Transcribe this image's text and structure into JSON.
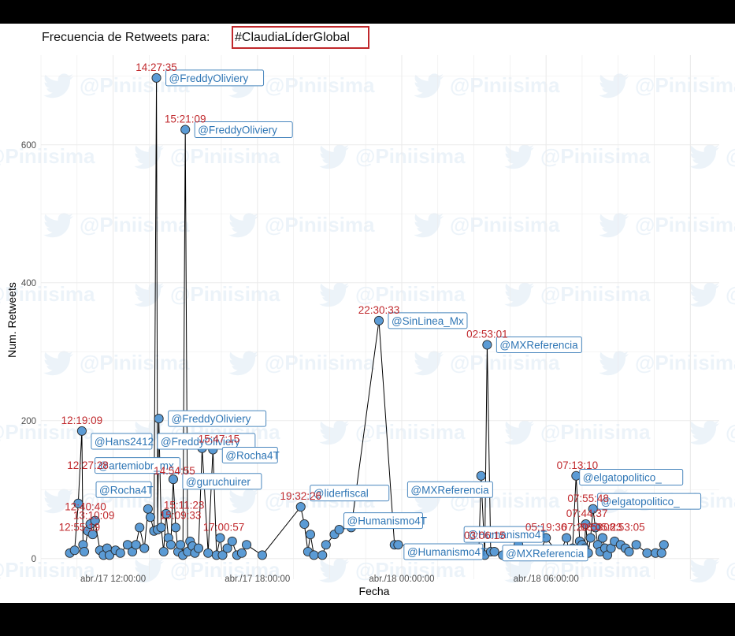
{
  "colors": {
    "point_fill": "#5b9bd5",
    "point_stroke": "#2a2a2a",
    "line": "#000000",
    "time_label": "#c0282c",
    "user_label": "#2f76b5",
    "title_box": "#c0282c",
    "grid": "#ebebeb"
  },
  "watermark": {
    "text": "@Piniisima",
    "icon": "twitter-bird-icon"
  },
  "chart_data": {
    "type": "line",
    "title_prefix": "Frecuencia de Retweets para: ",
    "title_hashtag": "#ClaudiaLíderGlobal",
    "xlabel": "Fecha",
    "ylabel": "Num. Retweets",
    "x_unit": "hours since abr./17 09:00",
    "xlim": [
      0,
      28.2
    ],
    "ylim": [
      -30,
      730
    ],
    "y_ticks": [
      0,
      200,
      400,
      600
    ],
    "x_ticks": [
      {
        "x": 3,
        "label": "abr./17 12:00:00"
      },
      {
        "x": 9,
        "label": "abr./17 18:00:00"
      },
      {
        "x": 15,
        "label": "abr./18 00:00:00"
      },
      {
        "x": 21,
        "label": "abr./18 06:00:00"
      }
    ],
    "points": [
      [
        1.2,
        8
      ],
      [
        1.4,
        12
      ],
      [
        1.55,
        80
      ],
      [
        1.7,
        185
      ],
      [
        1.75,
        20
      ],
      [
        1.8,
        10
      ],
      [
        1.95,
        40
      ],
      [
        2.05,
        50
      ],
      [
        2.15,
        35
      ],
      [
        2.25,
        55
      ],
      [
        2.45,
        12
      ],
      [
        2.6,
        5
      ],
      [
        2.75,
        15
      ],
      [
        2.85,
        5
      ],
      [
        3.1,
        12
      ],
      [
        3.3,
        8
      ],
      [
        3.6,
        20
      ],
      [
        3.8,
        10
      ],
      [
        3.95,
        20
      ],
      [
        4.1,
        45
      ],
      [
        4.3,
        15
      ],
      [
        4.45,
        72
      ],
      [
        4.55,
        60
      ],
      [
        4.7,
        40
      ],
      [
        4.8,
        697
      ],
      [
        4.85,
        42
      ],
      [
        4.9,
        203
      ],
      [
        5.0,
        45
      ],
      [
        5.1,
        10
      ],
      [
        5.2,
        65
      ],
      [
        5.3,
        30
      ],
      [
        5.4,
        20
      ],
      [
        5.5,
        115
      ],
      [
        5.6,
        45
      ],
      [
        5.7,
        10
      ],
      [
        5.8,
        20
      ],
      [
        5.9,
        5
      ],
      [
        6.0,
        622
      ],
      [
        6.1,
        10
      ],
      [
        6.2,
        25
      ],
      [
        6.3,
        18
      ],
      [
        6.4,
        8
      ],
      [
        6.55,
        15
      ],
      [
        6.7,
        160
      ],
      [
        6.95,
        8
      ],
      [
        7.15,
        158
      ],
      [
        7.3,
        5
      ],
      [
        7.45,
        30
      ],
      [
        7.55,
        5
      ],
      [
        7.75,
        15
      ],
      [
        7.95,
        25
      ],
      [
        8.15,
        5
      ],
      [
        8.35,
        8
      ],
      [
        8.55,
        20
      ],
      [
        9.2,
        5
      ],
      [
        10.8,
        75
      ],
      [
        10.95,
        50
      ],
      [
        11.1,
        10
      ],
      [
        11.2,
        35
      ],
      [
        11.35,
        5
      ],
      [
        11.7,
        5
      ],
      [
        11.85,
        20
      ],
      [
        12.2,
        35
      ],
      [
        12.4,
        42
      ],
      [
        12.9,
        45
      ],
      [
        14.05,
        345
      ],
      [
        14.7,
        20
      ],
      [
        14.85,
        20
      ],
      [
        18.0,
        10
      ],
      [
        18.2,
        5
      ],
      [
        18.3,
        120
      ],
      [
        18.45,
        5
      ],
      [
        18.55,
        310
      ],
      [
        18.7,
        10
      ],
      [
        18.85,
        10
      ],
      [
        19.2,
        5
      ],
      [
        19.5,
        5
      ],
      [
        19.85,
        20
      ],
      [
        20.1,
        5
      ],
      [
        20.45,
        8
      ],
      [
        20.75,
        10
      ],
      [
        21.0,
        30
      ],
      [
        21.55,
        5
      ],
      [
        21.85,
        30
      ],
      [
        21.95,
        10
      ],
      [
        22.1,
        15
      ],
      [
        22.25,
        120
      ],
      [
        22.4,
        25
      ],
      [
        22.5,
        20
      ],
      [
        22.6,
        15
      ],
      [
        22.65,
        50
      ],
      [
        22.75,
        8
      ],
      [
        22.85,
        30
      ],
      [
        22.95,
        72
      ],
      [
        23.05,
        45
      ],
      [
        23.15,
        20
      ],
      [
        23.25,
        10
      ],
      [
        23.35,
        30
      ],
      [
        23.45,
        15
      ],
      [
        23.55,
        5
      ],
      [
        23.7,
        15
      ],
      [
        23.85,
        25
      ],
      [
        24.1,
        20
      ],
      [
        24.3,
        15
      ],
      [
        24.45,
        10
      ],
      [
        24.75,
        20
      ],
      [
        25.2,
        8
      ],
      [
        25.55,
        8
      ],
      [
        25.8,
        8
      ],
      [
        25.9,
        20
      ]
    ],
    "time_labels": [
      {
        "x": 4.8,
        "y": 697,
        "text": "14:27:35"
      },
      {
        "x": 6.0,
        "y": 622,
        "text": "15:21:09"
      },
      {
        "x": 1.7,
        "y": 185,
        "text": "12:19:09"
      },
      {
        "x": 1.95,
        "y": 120,
        "text": "12:27:28"
      },
      {
        "x": 7.4,
        "y": 158,
        "text": "15:47:15"
      },
      {
        "x": 5.55,
        "y": 112,
        "text": "14:54:55"
      },
      {
        "x": 5.95,
        "y": 62,
        "text": "15:11:23"
      },
      {
        "x": 1.85,
        "y": 60,
        "text": "12:40:40"
      },
      {
        "x": 2.2,
        "y": 47,
        "text": "13:10:09"
      },
      {
        "x": 5.8,
        "y": 47,
        "text": "15:09:33"
      },
      {
        "x": 1.6,
        "y": 30,
        "text": "12:55:19"
      },
      {
        "x": 7.6,
        "y": 30,
        "text": "17:00:57"
      },
      {
        "x": 10.8,
        "y": 75,
        "text": "19:32:26"
      },
      {
        "x": 14.05,
        "y": 345,
        "text": "22:30:33"
      },
      {
        "x": 18.55,
        "y": 310,
        "text": "02:53:01"
      },
      {
        "x": 18.45,
        "y": 18,
        "text": "03:06:15"
      },
      {
        "x": 21.0,
        "y": 30,
        "text": "05:19:36"
      },
      {
        "x": 22.3,
        "y": 120,
        "text": "07:13:10"
      },
      {
        "x": 22.75,
        "y": 72,
        "text": "07:55:48"
      },
      {
        "x": 22.7,
        "y": 50,
        "text": "07:44:37"
      },
      {
        "x": 22.5,
        "y": 30,
        "text": "07:20:53"
      },
      {
        "x": 23.3,
        "y": 30,
        "text": "08:05:23"
      },
      {
        "x": 24.25,
        "y": 30,
        "text": "08:53:05"
      }
    ],
    "user_labels": [
      {
        "x": 4.8,
        "y": 697,
        "text": "@FreddyOliviery"
      },
      {
        "x": 6.0,
        "y": 622,
        "text": "@FreddyOliviery"
      },
      {
        "x": 4.9,
        "y": 203,
        "text": "@FreddyOliviery"
      },
      {
        "x": 1.7,
        "y": 170,
        "text": "@Hans2412"
      },
      {
        "x": 4.45,
        "y": 170,
        "text": "@FreddyOliviery"
      },
      {
        "x": 1.85,
        "y": 135,
        "text": "@artemiobr_mx"
      },
      {
        "x": 7.15,
        "y": 150,
        "text": "@Rocha4T"
      },
      {
        "x": 5.5,
        "y": 112,
        "text": "@guruchuirer"
      },
      {
        "x": 1.9,
        "y": 100,
        "text": "@Rocha4T"
      },
      {
        "x": 10.8,
        "y": 95,
        "text": "@liderfiscal"
      },
      {
        "x": 12.2,
        "y": 55,
        "text": "@Humanismo4T"
      },
      {
        "x": 14.05,
        "y": 345,
        "text": "@SinLinea_Mx"
      },
      {
        "x": 14.85,
        "y": 100,
        "text": "@MXReferencia"
      },
      {
        "x": 14.7,
        "y": 10,
        "text": "@Humanismo4T"
      },
      {
        "x": 17.2,
        "y": 35,
        "text": "@Humanismo4T"
      },
      {
        "x": 18.55,
        "y": 310,
        "text": "@MXReferencia"
      },
      {
        "x": 18.8,
        "y": 8,
        "text": "@MXReferencia"
      },
      {
        "x": 22.0,
        "y": 118,
        "text": "@elgatopolitico_"
      },
      {
        "x": 22.75,
        "y": 83,
        "text": "@elgatopolitico_"
      }
    ]
  }
}
